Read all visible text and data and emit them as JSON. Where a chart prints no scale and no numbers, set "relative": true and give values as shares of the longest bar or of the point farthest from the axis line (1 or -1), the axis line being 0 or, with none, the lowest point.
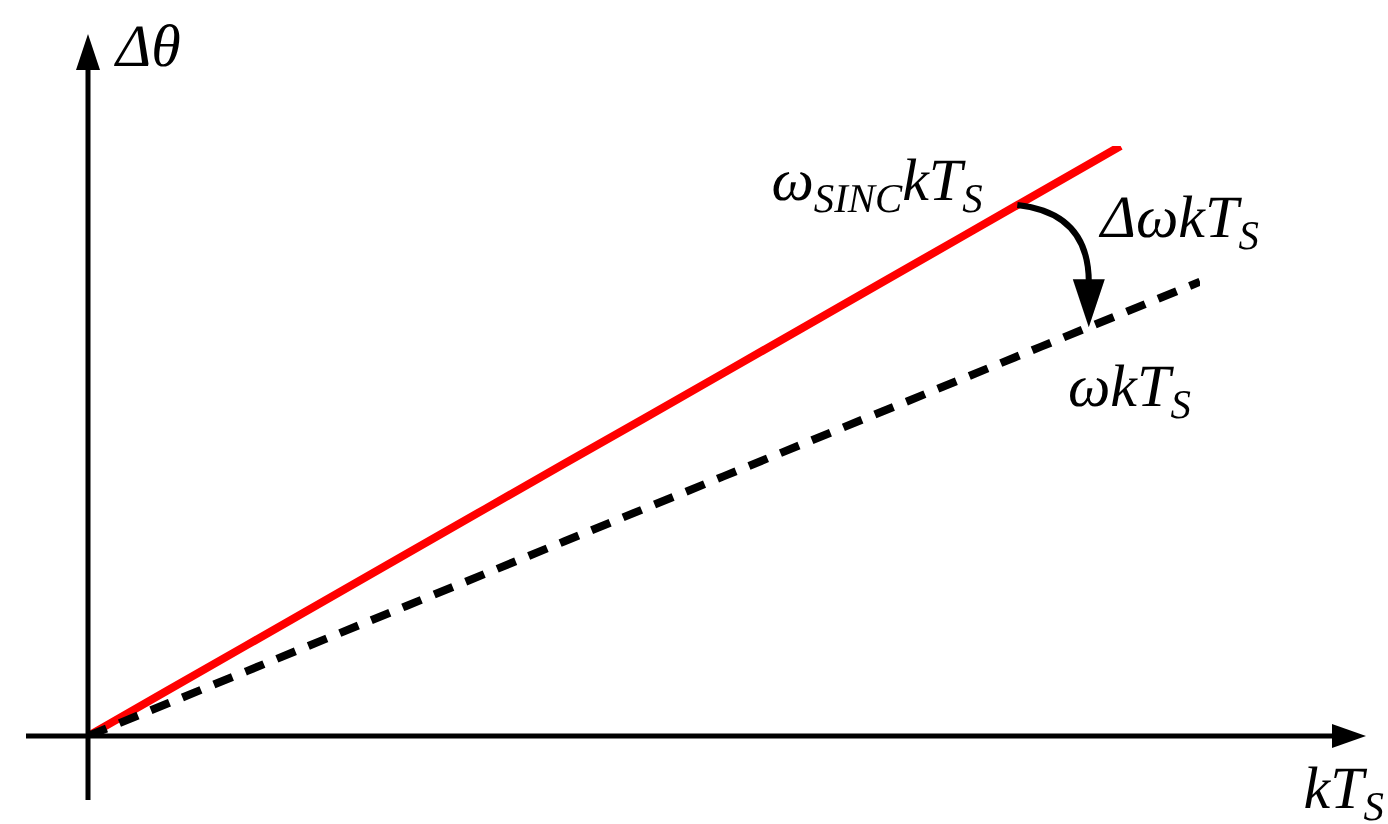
{
  "chart_data": {
    "type": "line",
    "relative": true,
    "xlabel": "kT$_{S}$",
    "ylabel": "Δθ",
    "annotations": [
      "ΔωkT$_{S}$"
    ],
    "categories": [
      null,
      null,
      null,
      null,
      null,
      null,
      null,
      null,
      null,
      null,
      null,
      null,
      null,
      null,
      null
    ],
    "series": [
      {
        "name": "ω$_{SINC}$kT$_{S}$",
        "color": "#ff0000",
        "values": [
          0,
          0.077,
          0.154,
          0.231,
          0.308,
          0.385,
          0.462,
          0.538,
          0.615,
          0.692,
          0.769,
          0.846,
          0.923,
          1,
          null
        ],
        "line_style": "solid"
      },
      {
        "name": "ωkT$_{S}$",
        "color": "#000000",
        "values": [
          0,
          0.055,
          0.11,
          0.165,
          0.22,
          0.275,
          0.33,
          0.385,
          0.44,
          0.495,
          0.55,
          0.605,
          0.66,
          0.715,
          0.77
        ],
        "line_style": "dashed"
      }
    ]
  }
}
